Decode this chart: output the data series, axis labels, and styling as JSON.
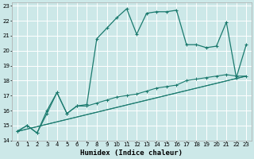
{
  "title": "",
  "xlabel": "Humidex (Indice chaleur)",
  "bg_color": "#cce8e8",
  "grid_color": "#ffffff",
  "line_color": "#1a7a6e",
  "xlim": [
    -0.5,
    23.5
  ],
  "ylim": [
    14,
    23.2
  ],
  "xticks": [
    0,
    1,
    2,
    3,
    4,
    5,
    6,
    7,
    8,
    9,
    10,
    11,
    12,
    13,
    14,
    15,
    16,
    17,
    18,
    19,
    20,
    21,
    22,
    23
  ],
  "yticks": [
    14,
    15,
    16,
    17,
    18,
    19,
    20,
    21,
    22,
    23
  ],
  "line1_x": [
    0,
    1,
    2,
    3,
    4,
    5,
    6,
    7,
    8,
    9,
    10,
    11,
    12,
    13,
    14,
    15,
    16,
    17,
    18,
    19,
    20,
    21,
    22,
    23
  ],
  "line1_y": [
    14.6,
    15.0,
    14.5,
    16.0,
    17.2,
    15.8,
    16.3,
    16.4,
    20.8,
    21.5,
    22.2,
    22.8,
    21.1,
    22.5,
    22.6,
    22.6,
    22.7,
    20.4,
    20.4,
    20.2,
    20.3,
    21.9,
    18.2,
    20.4
  ],
  "line2_x": [
    0,
    1,
    2,
    3,
    4,
    5,
    6,
    7,
    8,
    9,
    10,
    11,
    12,
    13,
    14,
    15,
    16,
    17,
    18,
    19,
    20,
    21,
    22,
    23
  ],
  "line2_y": [
    14.6,
    15.0,
    14.5,
    15.8,
    17.2,
    15.8,
    16.3,
    16.3,
    16.5,
    16.7,
    16.9,
    17.0,
    17.1,
    17.3,
    17.5,
    17.6,
    17.7,
    18.0,
    18.1,
    18.2,
    18.3,
    18.4,
    18.3,
    18.3
  ],
  "line3_x": [
    0,
    23
  ],
  "line3_y": [
    14.6,
    18.3
  ],
  "line4_x": [
    0,
    23
  ],
  "line4_y": [
    14.6,
    18.3
  ],
  "xlabel_fontsize": 6.5,
  "tick_fontsize": 5.0
}
